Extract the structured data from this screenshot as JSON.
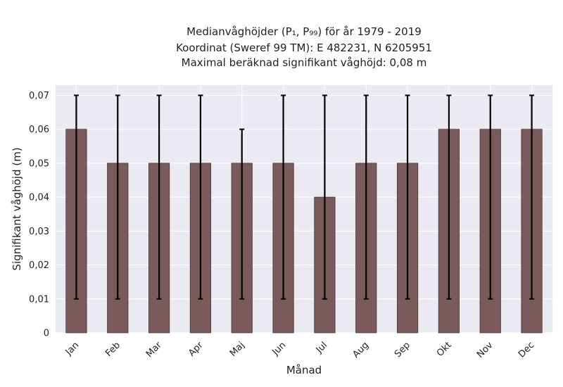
{
  "chart_data": {
    "type": "bar",
    "title_lines": [
      "Medianvåghöjder (P₁, P₉₉) för år 1979 - 2019",
      "Koordinat (Sweref 99 TM): E 482231, N 6205951",
      "Maximal beräknad signifikant våghöjd: 0,08 m"
    ],
    "xlabel": "Månad",
    "ylabel": "Signifikant våghöjd (m)",
    "categories": [
      "Jan",
      "Feb",
      "Mar",
      "Apr",
      "Maj",
      "Jun",
      "Jul",
      "Aug",
      "Sep",
      "Okt",
      "Nov",
      "Dec"
    ],
    "values": [
      0.06,
      0.05,
      0.05,
      0.05,
      0.05,
      0.05,
      0.04,
      0.05,
      0.05,
      0.06,
      0.06,
      0.06
    ],
    "error_low": [
      0.01,
      0.01,
      0.01,
      0.01,
      0.01,
      0.01,
      0.01,
      0.01,
      0.01,
      0.01,
      0.01,
      0.01
    ],
    "error_high": [
      0.07,
      0.07,
      0.07,
      0.07,
      0.06,
      0.07,
      0.07,
      0.07,
      0.07,
      0.07,
      0.07,
      0.07
    ],
    "ylim": [
      0,
      0.073
    ],
    "yticks": [
      0,
      0.01,
      0.02,
      0.03,
      0.04,
      0.05,
      0.06,
      0.07
    ],
    "ytick_labels": [
      "0",
      "0,01",
      "0,02",
      "0,03",
      "0,04",
      "0,05",
      "0,06",
      "0,07"
    ],
    "grid": true,
    "bar_color": "#7a5a5a",
    "background_color": "#eaeaf2"
  }
}
